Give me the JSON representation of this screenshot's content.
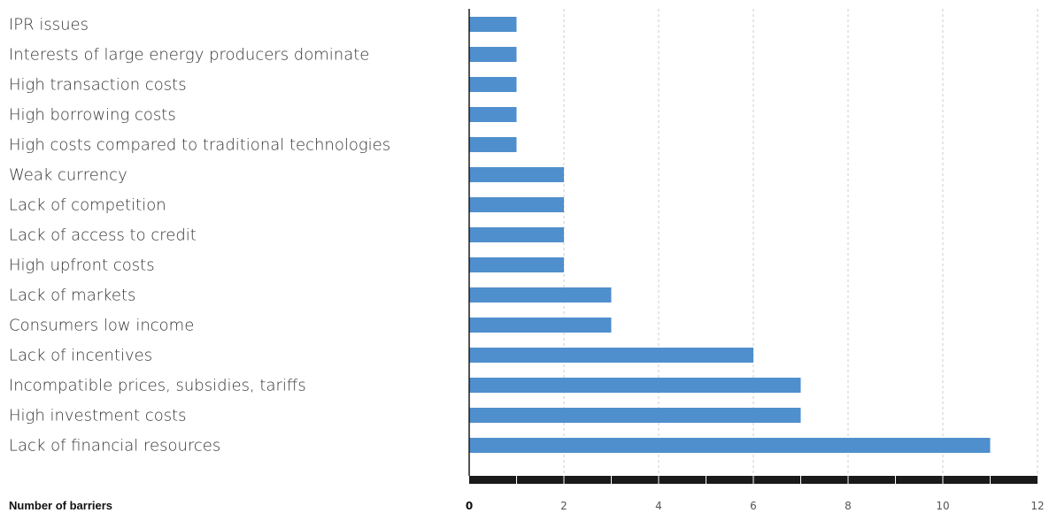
{
  "chart_data": {
    "type": "bar",
    "orientation": "horizontal",
    "categories": [
      "IPR issues",
      "Interests of large energy producers dominate",
      "High transaction costs",
      "High borrowing costs",
      "High costs compared to traditional technologies",
      "Weak currency",
      "Lack of competition",
      "Lack of access to credit",
      "High upfront costs",
      "Lack of markets",
      "Consumers low income",
      "Lack of incentives",
      "Incompatible prices, subsidies, tariffs",
      "High investment costs",
      "Lack of financial resources"
    ],
    "values": [
      1,
      1,
      1,
      1,
      1,
      2,
      2,
      2,
      2,
      3,
      3,
      6,
      7,
      7,
      11
    ],
    "xlabel": "Number of barriers",
    "xlim": [
      0,
      12
    ],
    "xticks": [
      "0",
      "2",
      "4",
      "6",
      "8",
      "10",
      "12"
    ],
    "grid": true,
    "colors": {
      "bar": "#4f8fcd",
      "axis": "#1a1a1a",
      "grid": "#cccccc"
    }
  }
}
